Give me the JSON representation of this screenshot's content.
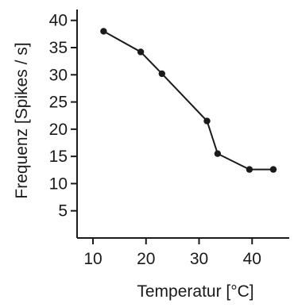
{
  "chart_data": {
    "type": "line",
    "title": "",
    "xlabel": "Temperatur [°C]",
    "ylabel": "Frequenz [Spikes / s]",
    "xlim": [
      7,
      47
    ],
    "ylim": [
      0,
      42
    ],
    "xticks": [
      10,
      20,
      30,
      40
    ],
    "yticks": [
      5,
      10,
      15,
      20,
      25,
      30,
      35,
      40
    ],
    "grid": false,
    "series": [
      {
        "x": [
          12,
          19,
          23,
          31.5,
          33.5,
          39.5,
          44
        ],
        "y": [
          38,
          34.2,
          30.2,
          21.5,
          15.5,
          12.6,
          12.6
        ]
      }
    ],
    "colors": {
      "line": "#1a1a1a",
      "marker": "#1a1a1a"
    }
  }
}
